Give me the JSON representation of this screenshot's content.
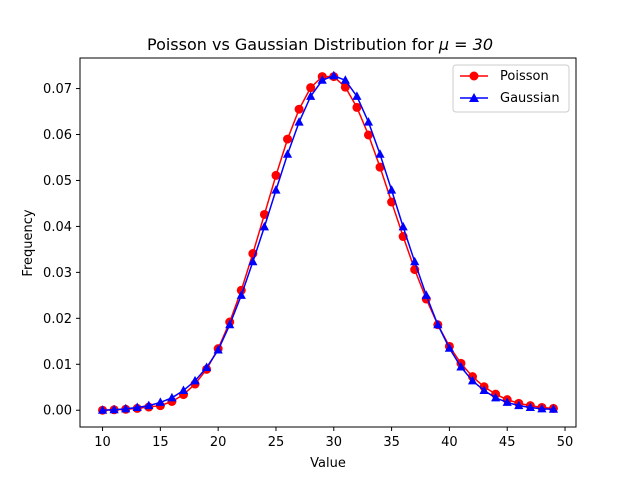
{
  "chart_data": {
    "type": "line",
    "title": "Poisson vs Gaussian Distribution for μ = 30",
    "title_prefix": "Poisson vs Gaussian Distribution for ",
    "title_math": "μ = 30",
    "xlabel": "Value",
    "ylabel": "Frequency",
    "xlim": [
      8.05,
      50.95
    ],
    "ylim": [
      -0.00365,
      0.07665
    ],
    "xticks": [
      10,
      15,
      20,
      25,
      30,
      35,
      40,
      45,
      50
    ],
    "yticks": [
      0.0,
      0.01,
      0.02,
      0.03,
      0.04,
      0.05,
      0.06,
      0.07
    ],
    "xtick_labels": [
      "10",
      "15",
      "20",
      "25",
      "30",
      "35",
      "40",
      "45",
      "50"
    ],
    "ytick_labels": [
      "0.00",
      "0.01",
      "0.02",
      "0.03",
      "0.04",
      "0.05",
      "0.06",
      "0.07"
    ],
    "grid": false,
    "legend_position": "top-right",
    "x": [
      10,
      11,
      12,
      13,
      14,
      15,
      16,
      17,
      18,
      19,
      20,
      21,
      22,
      23,
      24,
      25,
      26,
      27,
      28,
      29,
      30,
      31,
      32,
      33,
      34,
      35,
      36,
      37,
      38,
      39,
      40,
      41,
      42,
      43,
      44,
      45,
      46,
      47,
      48,
      49
    ],
    "series": [
      {
        "name": "Poisson",
        "color": "#ff0000",
        "marker": "circle",
        "values": [
          0.0,
          0.0001,
          0.0002,
          0.0004,
          0.0007,
          0.001,
          0.0019,
          0.0034,
          0.0057,
          0.0089,
          0.0134,
          0.0192,
          0.0261,
          0.0341,
          0.0426,
          0.0511,
          0.059,
          0.0655,
          0.0702,
          0.0726,
          0.0726,
          0.0703,
          0.0659,
          0.0599,
          0.0529,
          0.0453,
          0.0378,
          0.0306,
          0.0242,
          0.0186,
          0.0139,
          0.0102,
          0.0073,
          0.0051,
          0.0035,
          0.0023,
          0.0015,
          0.001,
          0.0006,
          0.0004
        ]
      },
      {
        "name": "Gaussian",
        "color": "#0000ff",
        "marker": "triangle",
        "values": [
          0.0,
          0.0001,
          0.0003,
          0.0006,
          0.001,
          0.0017,
          0.0027,
          0.0043,
          0.0064,
          0.0093,
          0.0131,
          0.0186,
          0.025,
          0.0323,
          0.0399,
          0.0479,
          0.0557,
          0.0627,
          0.0683,
          0.0718,
          0.0728,
          0.0718,
          0.0683,
          0.0627,
          0.0557,
          0.0479,
          0.0399,
          0.0323,
          0.025,
          0.0186,
          0.0135,
          0.0094,
          0.0064,
          0.0043,
          0.0027,
          0.0017,
          0.001,
          0.0006,
          0.0003,
          0.0002
        ]
      }
    ]
  }
}
